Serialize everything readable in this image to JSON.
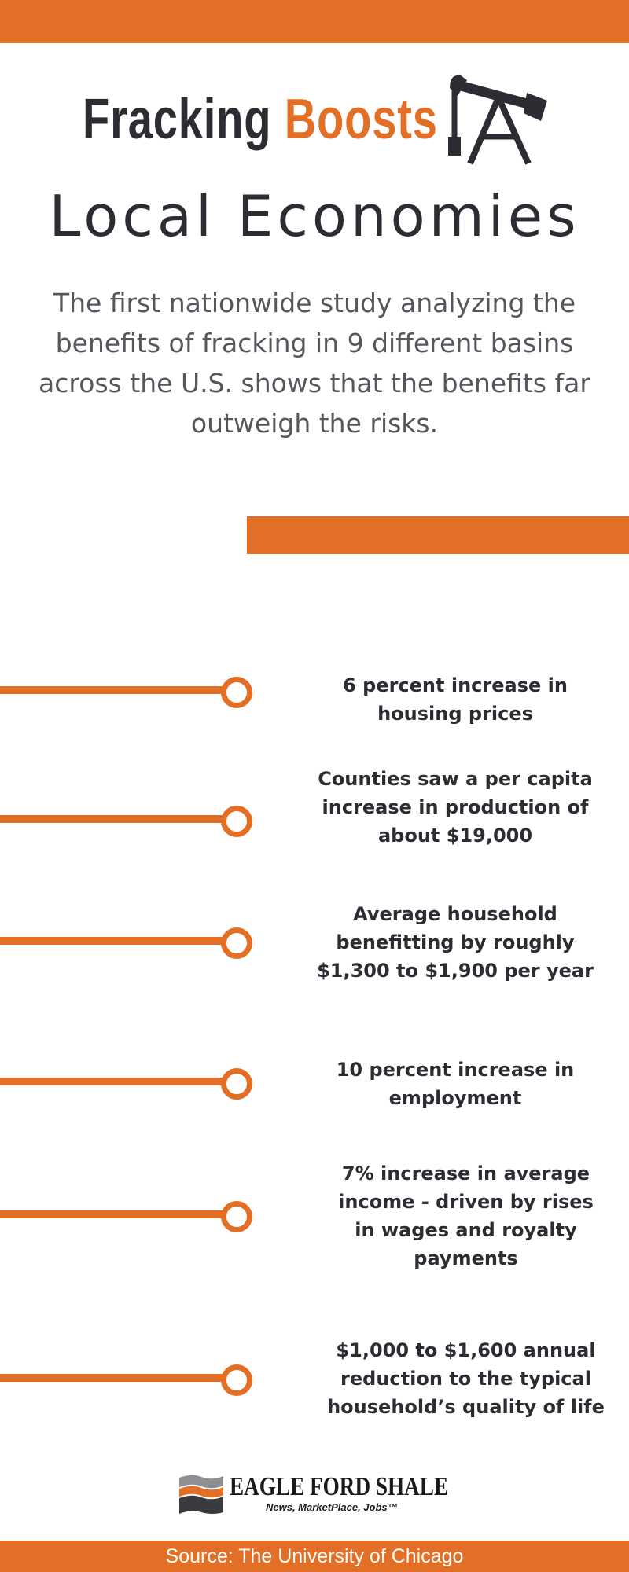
{
  "title": {
    "word1": "Fracking",
    "word2": "Boosts",
    "line2": "Local Economies"
  },
  "intro": "The first nationwide study analyzing the benefits of fracking in 9 different basins across the U.S. shows that the benefits far outweigh the risks.",
  "stats": [
    {
      "text": "6 percent increase in housing prices"
    },
    {
      "text": "Counties saw a per capita increase in production of about $19,000"
    },
    {
      "text": "Average household benefitting by roughly $1,300 to $1,900 per year"
    },
    {
      "text": "10 percent increase in employment"
    },
    {
      "text": "7% increase in average income - driven by rises in wages and royalty payments"
    },
    {
      "text": "$1,000 to $1,600 annual reduction to  the typical household’s quality of life"
    }
  ],
  "logo": {
    "name": "EAGLE FORD SHALE",
    "tagline": "News, MarketPlace, Jobs™"
  },
  "source": "Source: The University of Chicago",
  "colors": {
    "accent": "#e26f25",
    "dark_text": "#2b2d33",
    "body_text": "#55575c"
  },
  "icons": [
    "pumpjack-icon",
    "eagle-ford-shale-logo-icon"
  ]
}
